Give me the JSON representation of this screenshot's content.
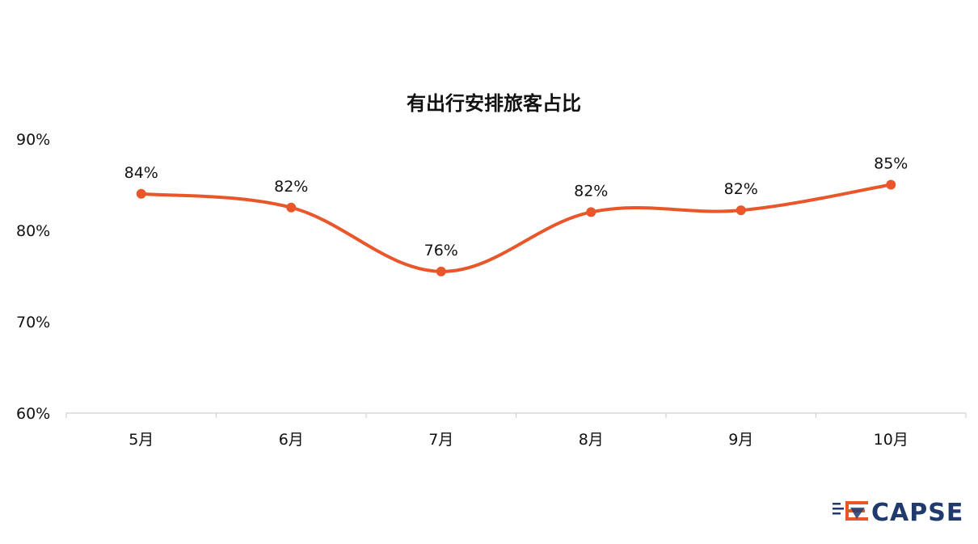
{
  "chart_data": {
    "type": "line",
    "title": "有出行安排旅客占比",
    "xlabel": "",
    "ylabel": "",
    "categories": [
      "5月",
      "6月",
      "7月",
      "8月",
      "9月",
      "10月"
    ],
    "series": [
      {
        "values": [
          84,
          82.5,
          75.5,
          82,
          82.2,
          85
        ],
        "labels": [
          "84%",
          "82%",
          "76%",
          "82%",
          "82%",
          "85%"
        ]
      }
    ],
    "ylim": [
      60,
      90
    ],
    "yticks": [
      "60%",
      "70%",
      "80%",
      "90%"
    ],
    "grid": false,
    "legend": "none",
    "line_color": "#e8562a",
    "smooth": true
  },
  "logo": {
    "text": "CAPSE",
    "color": "#1f3a6b",
    "accent": "#e8562a"
  }
}
